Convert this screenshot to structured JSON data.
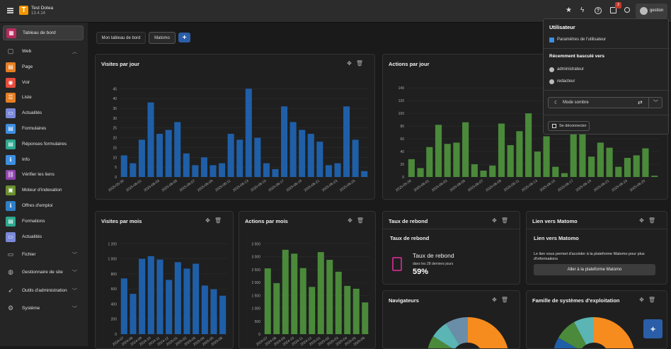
{
  "topbar": {
    "site_name": "Test Dotea",
    "version": "13.4.14",
    "badge_count": "2",
    "user": "gestion"
  },
  "sidebar": {
    "items": [
      {
        "label": "Tableau de bord",
        "color": "#b72a5c"
      },
      {
        "label": "Web"
      },
      {
        "label": "Page",
        "color": "#e67e22"
      },
      {
        "label": "Voir",
        "color": "#e74c3c"
      },
      {
        "label": "Liste",
        "color": "#e67e22"
      },
      {
        "label": "Actualités",
        "color": "#7a88d8"
      },
      {
        "label": "Formulaires",
        "color": "#3d8ee0"
      },
      {
        "label": "Réponses formulaires",
        "color": "#2ea88f"
      },
      {
        "label": "Info",
        "color": "#3d8ee0"
      },
      {
        "label": "Vérifier les liens",
        "color": "#8e44ad"
      },
      {
        "label": "Moteur d'indexation",
        "color": "#6a8f2e"
      },
      {
        "label": "Offres d'emploi",
        "color": "#2f7ec7"
      },
      {
        "label": "Formations",
        "color": "#2ea88f"
      },
      {
        "label": "Actualités",
        "color": "#7a88d8"
      },
      {
        "label": "Fichier"
      },
      {
        "label": "Gestionnaire de site"
      },
      {
        "label": "Outils d'administration"
      },
      {
        "label": "Système"
      }
    ]
  },
  "tabs": [
    "Mon tableau de bord",
    "Matomo"
  ],
  "widgets": {
    "visites_jour": "Visites par jour",
    "actions_jour": "Actions par jour",
    "visites_mois": "Visites par mois",
    "actions_mois": "Actions par mois",
    "rebond": "Taux de rebond",
    "rebond_sub": "Taux de rebond",
    "rebond_label": "Taux de rebond",
    "rebond_period": "dans les 28 derniers jours",
    "rebond_value": "59%",
    "lien": "Lien vers Matomo",
    "lien_sub": "Lien vers Matomo",
    "lien_text": "Le lien vous permet d'accéder à la plateforme Matomo pour plus d'informations",
    "lien_button": "Aller à la plateforme Matomo",
    "navigateurs": "Navigateurs",
    "os": "Famille de systèmes d'exploitation"
  },
  "dropdown": {
    "title": "Utilisateur",
    "settings": "Paramètres de l'utilisateur",
    "recent_title": "Récemment basculé vers",
    "recent": [
      "administrateur",
      "redacteur"
    ],
    "dark_mode": "Mode sombre",
    "logout": "Se déconnecter"
  },
  "colors": {
    "blue": "#1f5fa8",
    "green": "#4a8a3a",
    "orange": "#f68b1e",
    "teal": "#5bb5b5"
  },
  "chart_data": [
    {
      "type": "bar",
      "title": "Visites par jour",
      "x": [
        "2025-05-30",
        "2025-05-31",
        "2025-06-01",
        "2025-06-02",
        "2025-06-03",
        "2025-06-04",
        "2025-06-05",
        "2025-06-06",
        "2025-06-07",
        "2025-06-08",
        "2025-06-09",
        "2025-06-10",
        "2025-06-11",
        "2025-06-12",
        "2025-06-13",
        "2025-06-14",
        "2025-06-15",
        "2025-06-16",
        "2025-06-17",
        "2025-06-18",
        "2025-06-19",
        "2025-06-20",
        "2025-06-21",
        "2025-06-22",
        "2025-06-23",
        "2025-06-24",
        "2025-06-25",
        "2025-06-26"
      ],
      "tick_labels": [
        "2025-05-30",
        "2025-06-01",
        "2025-06-03",
        "2025-06-05",
        "2025-06-07",
        "2025-06-09",
        "2025-06-11",
        "2025-06-13",
        "2025-06-15",
        "2025-06-17",
        "2025-06-19",
        "2025-06-21",
        "2025-06-23",
        "2025-06-25"
      ],
      "values": [
        11,
        7,
        19,
        38,
        22,
        24,
        28,
        12,
        6,
        10,
        6,
        7,
        22,
        19,
        45,
        20,
        7,
        4,
        36,
        28,
        24,
        22,
        18,
        6,
        7,
        36,
        19,
        3
      ],
      "yticks": [
        0,
        5,
        10,
        15,
        20,
        25,
        30,
        35,
        40,
        45
      ],
      "ylim": [
        0,
        48
      ],
      "color": "#1f5fa8"
    },
    {
      "type": "bar",
      "title": "Actions par jour",
      "x": [
        "2025-05-30",
        "2025-05-31",
        "2025-06-01",
        "2025-06-02",
        "2025-06-03",
        "2025-06-04",
        "2025-06-05",
        "2025-06-06",
        "2025-06-07",
        "2025-06-08",
        "2025-06-09",
        "2025-06-10",
        "2025-06-11",
        "2025-06-12",
        "2025-06-13",
        "2025-06-14",
        "2025-06-15",
        "2025-06-16",
        "2025-06-17",
        "2025-06-18",
        "2025-06-19",
        "2025-06-20",
        "2025-06-21",
        "2025-06-22",
        "2025-06-23",
        "2025-06-24",
        "2025-06-25",
        "2025-06-26"
      ],
      "tick_labels": [
        "2025-05-30",
        "2025-06-01",
        "2025-06-03",
        "2025-06-05",
        "2025-06-07",
        "2025-06-09",
        "2025-06-11",
        "2025-06-13",
        "2025-06-15",
        "2025-06-17",
        "2025-06-19",
        "2025-06-21",
        "2025-06-23",
        "2025-06-25"
      ],
      "values": [
        28,
        14,
        47,
        82,
        52,
        54,
        86,
        20,
        10,
        18,
        84,
        50,
        72,
        100,
        40,
        64,
        16,
        6,
        84,
        96,
        32,
        54,
        46,
        16,
        30,
        34,
        45,
        2
      ],
      "yticks": [
        0,
        20,
        40,
        60,
        80,
        100,
        120,
        140
      ],
      "ylim": [
        0,
        148
      ],
      "color": "#4a8a3a"
    },
    {
      "type": "bar",
      "title": "Visites par mois",
      "x": [
        "2024-07",
        "2024-08",
        "2024-09",
        "2024-10",
        "2024-11",
        "2024-12",
        "2025-01",
        "2025-02",
        "2025-03",
        "2025-04",
        "2025-05",
        "2025-06"
      ],
      "tick_labels": [
        "2024-07",
        "2024-08",
        "2024-09",
        "2024-10",
        "2024-11",
        "2024-12",
        "2025-01",
        "2025-02",
        "2025-03",
        "2025-04",
        "2025-05",
        "2025-06"
      ],
      "values": [
        740,
        535,
        1000,
        1035,
        990,
        720,
        955,
        870,
        935,
        645,
        595,
        510
      ],
      "yticks": [
        0,
        200,
        400,
        600,
        800,
        1000,
        1200
      ],
      "ylim": [
        0,
        1250
      ],
      "color": "#1f5fa8"
    },
    {
      "type": "bar",
      "title": "Actions par mois",
      "x": [
        "2024-07",
        "2024-08",
        "2024-09",
        "2024-10",
        "2024-11",
        "2024-12",
        "2025-01",
        "2025-02",
        "2025-03",
        "2025-04",
        "2025-05",
        "2025-06"
      ],
      "tick_labels": [
        "2024-07",
        "2024-08",
        "2024-09",
        "2024-10",
        "2024-11",
        "2024-12",
        "2025-01",
        "2025-02",
        "2025-03",
        "2025-04",
        "2025-05",
        "2025-06"
      ],
      "values": [
        2550,
        1975,
        3270,
        3120,
        2560,
        1830,
        3180,
        2880,
        2420,
        1870,
        1760,
        1230
      ],
      "yticks": [
        0,
        500,
        1000,
        1500,
        2000,
        2500,
        3000,
        3500
      ],
      "ylim": [
        0,
        3650
      ],
      "color": "#4a8a3a"
    }
  ]
}
